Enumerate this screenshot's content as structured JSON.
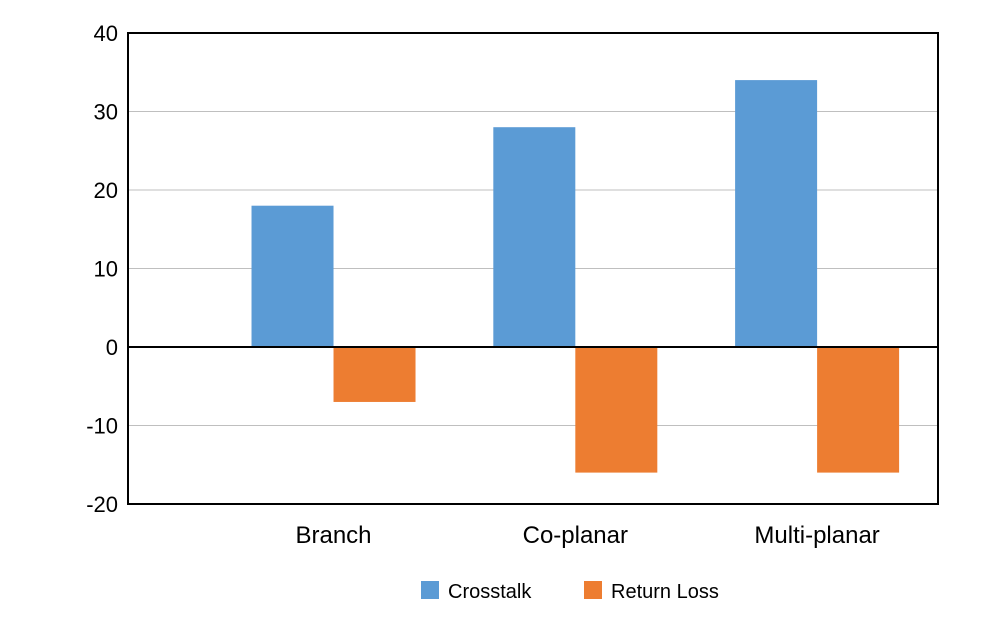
{
  "chart_data": {
    "type": "bar",
    "title": "",
    "xlabel": "",
    "ylabel": "",
    "categories": [
      "Branch",
      "Co-planar",
      "Multi-planar"
    ],
    "series": [
      {
        "name": "Crosstalk",
        "color": "#5b9bd5",
        "values": [
          18,
          28,
          34
        ]
      },
      {
        "name": "Return Loss",
        "color": "#ed7d31",
        "values": [
          -7,
          -16,
          -16
        ]
      }
    ],
    "ylim": [
      -20,
      40
    ],
    "yticks": [
      40,
      30,
      20,
      10,
      0,
      -10,
      -20
    ],
    "grid": true,
    "legend_position": "bottom"
  }
}
